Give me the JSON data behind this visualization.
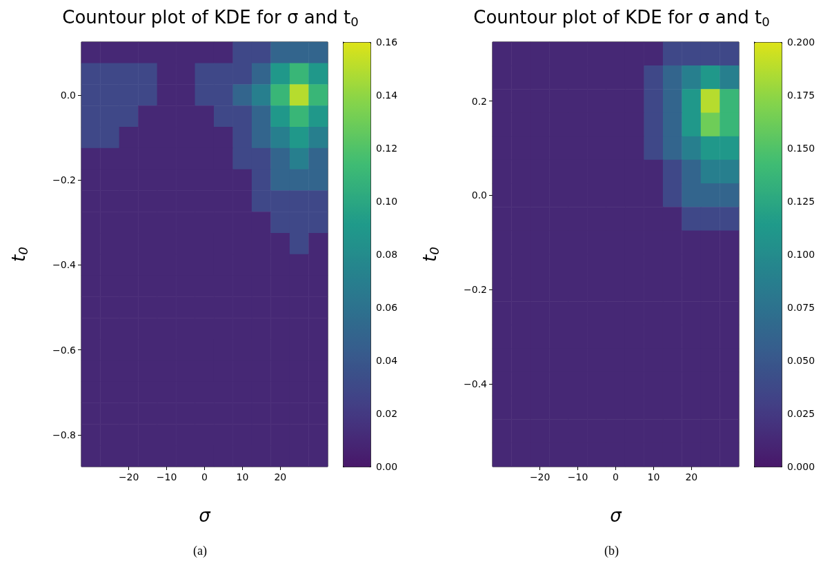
{
  "chart_data": [
    {
      "type": "heatmap",
      "title": "Countour plot of KDE for σ and t$_{0}$",
      "xlabel": "σ",
      "ylabel": "t$_{0}$",
      "annotations": [
        "(a)"
      ],
      "categories": [
        null,
        null,
        "−20",
        null,
        "−10",
        null,
        "0",
        null,
        "10",
        null,
        "20",
        null,
        null
      ],
      "y_categories": [
        null,
        null,
        "0.0",
        null,
        null,
        null,
        "−0.2",
        null,
        null,
        null,
        "−0.4",
        null,
        null,
        null,
        "−0.6",
        null,
        null,
        null,
        "−0.8",
        null
      ],
      "cells": [
        [
          0.01,
          0.01,
          0.01,
          0.01,
          0.01,
          0.01,
          0.01,
          0.01,
          0.03,
          0.03,
          0.05,
          0.05,
          0.05
        ],
        [
          0.03,
          0.03,
          0.03,
          0.03,
          0.01,
          0.01,
          0.03,
          0.03,
          0.03,
          0.05,
          0.09,
          0.11,
          0.09
        ],
        [
          0.03,
          0.03,
          0.03,
          0.03,
          0.01,
          0.01,
          0.03,
          0.03,
          0.05,
          0.07,
          0.11,
          0.15,
          0.11
        ],
        [
          0.03,
          0.03,
          0.03,
          0.01,
          0.01,
          0.01,
          0.01,
          0.03,
          0.03,
          0.05,
          0.09,
          0.11,
          0.09
        ],
        [
          0.03,
          0.03,
          0.01,
          0.01,
          0.01,
          0.01,
          0.01,
          0.01,
          0.03,
          0.05,
          0.07,
          0.09,
          0.07
        ],
        [
          0.01,
          0.01,
          0.01,
          0.01,
          0.01,
          0.01,
          0.01,
          0.01,
          0.03,
          0.03,
          0.05,
          0.07,
          0.05
        ],
        [
          0.01,
          0.01,
          0.01,
          0.01,
          0.01,
          0.01,
          0.01,
          0.01,
          0.01,
          0.03,
          0.05,
          0.05,
          0.05
        ],
        [
          0.01,
          0.01,
          0.01,
          0.01,
          0.01,
          0.01,
          0.01,
          0.01,
          0.01,
          0.03,
          0.03,
          0.03,
          0.03
        ],
        [
          0.01,
          0.01,
          0.01,
          0.01,
          0.01,
          0.01,
          0.01,
          0.01,
          0.01,
          0.01,
          0.03,
          0.03,
          0.03
        ],
        [
          0.01,
          0.01,
          0.01,
          0.01,
          0.01,
          0.01,
          0.01,
          0.01,
          0.01,
          0.01,
          0.01,
          0.03,
          0.01
        ],
        [
          0.01,
          0.01,
          0.01,
          0.01,
          0.01,
          0.01,
          0.01,
          0.01,
          0.01,
          0.01,
          0.01,
          0.01,
          0.01
        ],
        [
          0.01,
          0.01,
          0.01,
          0.01,
          0.01,
          0.01,
          0.01,
          0.01,
          0.01,
          0.01,
          0.01,
          0.01,
          0.01
        ],
        [
          0.01,
          0.01,
          0.01,
          0.01,
          0.01,
          0.01,
          0.01,
          0.01,
          0.01,
          0.01,
          0.01,
          0.01,
          0.01
        ],
        [
          0.01,
          0.01,
          0.01,
          0.01,
          0.01,
          0.01,
          0.01,
          0.01,
          0.01,
          0.01,
          0.01,
          0.01,
          0.01
        ],
        [
          0.01,
          0.01,
          0.01,
          0.01,
          0.01,
          0.01,
          0.01,
          0.01,
          0.01,
          0.01,
          0.01,
          0.01,
          0.01
        ],
        [
          0.01,
          0.01,
          0.01,
          0.01,
          0.01,
          0.01,
          0.01,
          0.01,
          0.01,
          0.01,
          0.01,
          0.01,
          0.01
        ],
        [
          0.01,
          0.01,
          0.01,
          0.01,
          0.01,
          0.01,
          0.01,
          0.01,
          0.01,
          0.01,
          0.01,
          0.01,
          0.01
        ],
        [
          0.01,
          0.01,
          0.01,
          0.01,
          0.01,
          0.01,
          0.01,
          0.01,
          0.01,
          0.01,
          0.01,
          0.01,
          0.01
        ],
        [
          0.01,
          0.01,
          0.01,
          0.01,
          0.01,
          0.01,
          0.01,
          0.01,
          0.01,
          0.01,
          0.01,
          0.01,
          0.01
        ],
        [
          0.01,
          0.01,
          0.01,
          0.01,
          0.01,
          0.01,
          0.01,
          0.01,
          0.01,
          0.01,
          0.01,
          0.01,
          0.01
        ]
      ],
      "clim": [
        0,
        0.16
      ],
      "cticks": [
        {
          "value": 0,
          "label": "0.00"
        },
        {
          "value": 0.02,
          "label": "0.02"
        },
        {
          "value": 0.04,
          "label": "0.04"
        },
        {
          "value": 0.06,
          "label": "0.06"
        },
        {
          "value": 0.08,
          "label": "0.08"
        },
        {
          "value": 0.1,
          "label": "0.10"
        },
        {
          "value": 0.12,
          "label": "0.12"
        },
        {
          "value": 0.14,
          "label": "0.14"
        },
        {
          "value": 0.16,
          "label": "0.16"
        }
      ],
      "colors": [
        "#481769",
        "#433e85",
        "#355f8d",
        "#287d8e",
        "#1f9a8a",
        "#3fbc73",
        "#84d44b",
        "#dde318"
      ]
    },
    {
      "type": "heatmap",
      "title": "Countour plot of KDE for σ and t$_{0}$",
      "xlabel": "σ",
      "ylabel": "t$_{0}$",
      "annotations": [
        "(b)"
      ],
      "categories": [
        null,
        null,
        "−20",
        null,
        "−10",
        null,
        "0",
        null,
        "10",
        null,
        "20",
        null,
        null
      ],
      "y_categories": [
        null,
        null,
        "0.2",
        null,
        null,
        null,
        "0.0",
        null,
        null,
        null,
        "−0.2",
        null,
        null,
        null,
        "−0.4",
        null,
        null,
        null
      ],
      "cells": [
        [
          0.0125,
          0.0125,
          0.0125,
          0.0125,
          0.0125,
          0.0125,
          0.0125,
          0.0125,
          0.0125,
          0.0375,
          0.0375,
          0.0375,
          0.0375
        ],
        [
          0.0125,
          0.0125,
          0.0125,
          0.0125,
          0.0125,
          0.0125,
          0.0125,
          0.0125,
          0.0375,
          0.0625,
          0.0875,
          0.1125,
          0.0875
        ],
        [
          0.0125,
          0.0125,
          0.0125,
          0.0125,
          0.0125,
          0.0125,
          0.0125,
          0.0125,
          0.0375,
          0.0625,
          0.1125,
          0.1875,
          0.1375
        ],
        [
          0.0125,
          0.0125,
          0.0125,
          0.0125,
          0.0125,
          0.0125,
          0.0125,
          0.0125,
          0.0375,
          0.0625,
          0.1125,
          0.1625,
          0.1375
        ],
        [
          0.0125,
          0.0125,
          0.0125,
          0.0125,
          0.0125,
          0.0125,
          0.0125,
          0.0125,
          0.0375,
          0.0625,
          0.0875,
          0.1125,
          0.1125
        ],
        [
          0.0125,
          0.0125,
          0.0125,
          0.0125,
          0.0125,
          0.0125,
          0.0125,
          0.0125,
          0.0125,
          0.0375,
          0.0625,
          0.0875,
          0.0875
        ],
        [
          0.0125,
          0.0125,
          0.0125,
          0.0125,
          0.0125,
          0.0125,
          0.0125,
          0.0125,
          0.0125,
          0.0375,
          0.0625,
          0.0625,
          0.0625
        ],
        [
          0.0125,
          0.0125,
          0.0125,
          0.0125,
          0.0125,
          0.0125,
          0.0125,
          0.0125,
          0.0125,
          0.0125,
          0.0375,
          0.0375,
          0.0375
        ],
        [
          0.0125,
          0.0125,
          0.0125,
          0.0125,
          0.0125,
          0.0125,
          0.0125,
          0.0125,
          0.0125,
          0.0125,
          0.0125,
          0.0125,
          0.0125
        ],
        [
          0.0125,
          0.0125,
          0.0125,
          0.0125,
          0.0125,
          0.0125,
          0.0125,
          0.0125,
          0.0125,
          0.0125,
          0.0125,
          0.0125,
          0.0125
        ],
        [
          0.0125,
          0.0125,
          0.0125,
          0.0125,
          0.0125,
          0.0125,
          0.0125,
          0.0125,
          0.0125,
          0.0125,
          0.0125,
          0.0125,
          0.0125
        ],
        [
          0.0125,
          0.0125,
          0.0125,
          0.0125,
          0.0125,
          0.0125,
          0.0125,
          0.0125,
          0.0125,
          0.0125,
          0.0125,
          0.0125,
          0.0125
        ],
        [
          0.0125,
          0.0125,
          0.0125,
          0.0125,
          0.0125,
          0.0125,
          0.0125,
          0.0125,
          0.0125,
          0.0125,
          0.0125,
          0.0125,
          0.0125
        ],
        [
          0.0125,
          0.0125,
          0.0125,
          0.0125,
          0.0125,
          0.0125,
          0.0125,
          0.0125,
          0.0125,
          0.0125,
          0.0125,
          0.0125,
          0.0125
        ],
        [
          0.0125,
          0.0125,
          0.0125,
          0.0125,
          0.0125,
          0.0125,
          0.0125,
          0.0125,
          0.0125,
          0.0125,
          0.0125,
          0.0125,
          0.0125
        ],
        [
          0.0125,
          0.0125,
          0.0125,
          0.0125,
          0.0125,
          0.0125,
          0.0125,
          0.0125,
          0.0125,
          0.0125,
          0.0125,
          0.0125,
          0.0125
        ],
        [
          0.0125,
          0.0125,
          0.0125,
          0.0125,
          0.0125,
          0.0125,
          0.0125,
          0.0125,
          0.0125,
          0.0125,
          0.0125,
          0.0125,
          0.0125
        ],
        [
          0.0125,
          0.0125,
          0.0125,
          0.0125,
          0.0125,
          0.0125,
          0.0125,
          0.0125,
          0.0125,
          0.0125,
          0.0125,
          0.0125,
          0.0125
        ]
      ],
      "clim": [
        0,
        0.2
      ],
      "cticks": [
        {
          "value": 0,
          "label": "0.000"
        },
        {
          "value": 0.025,
          "label": "0.025"
        },
        {
          "value": 0.05,
          "label": "0.050"
        },
        {
          "value": 0.075,
          "label": "0.075"
        },
        {
          "value": 0.1,
          "label": "0.100"
        },
        {
          "value": 0.125,
          "label": "0.125"
        },
        {
          "value": 0.15,
          "label": "0.150"
        },
        {
          "value": 0.175,
          "label": "0.175"
        },
        {
          "value": 0.2,
          "label": "0.200"
        }
      ],
      "colors": [
        "#481769",
        "#433e85",
        "#355f8d",
        "#287d8e",
        "#1f9a8a",
        "#3fbc73",
        "#84d44b",
        "#dde318"
      ]
    }
  ]
}
